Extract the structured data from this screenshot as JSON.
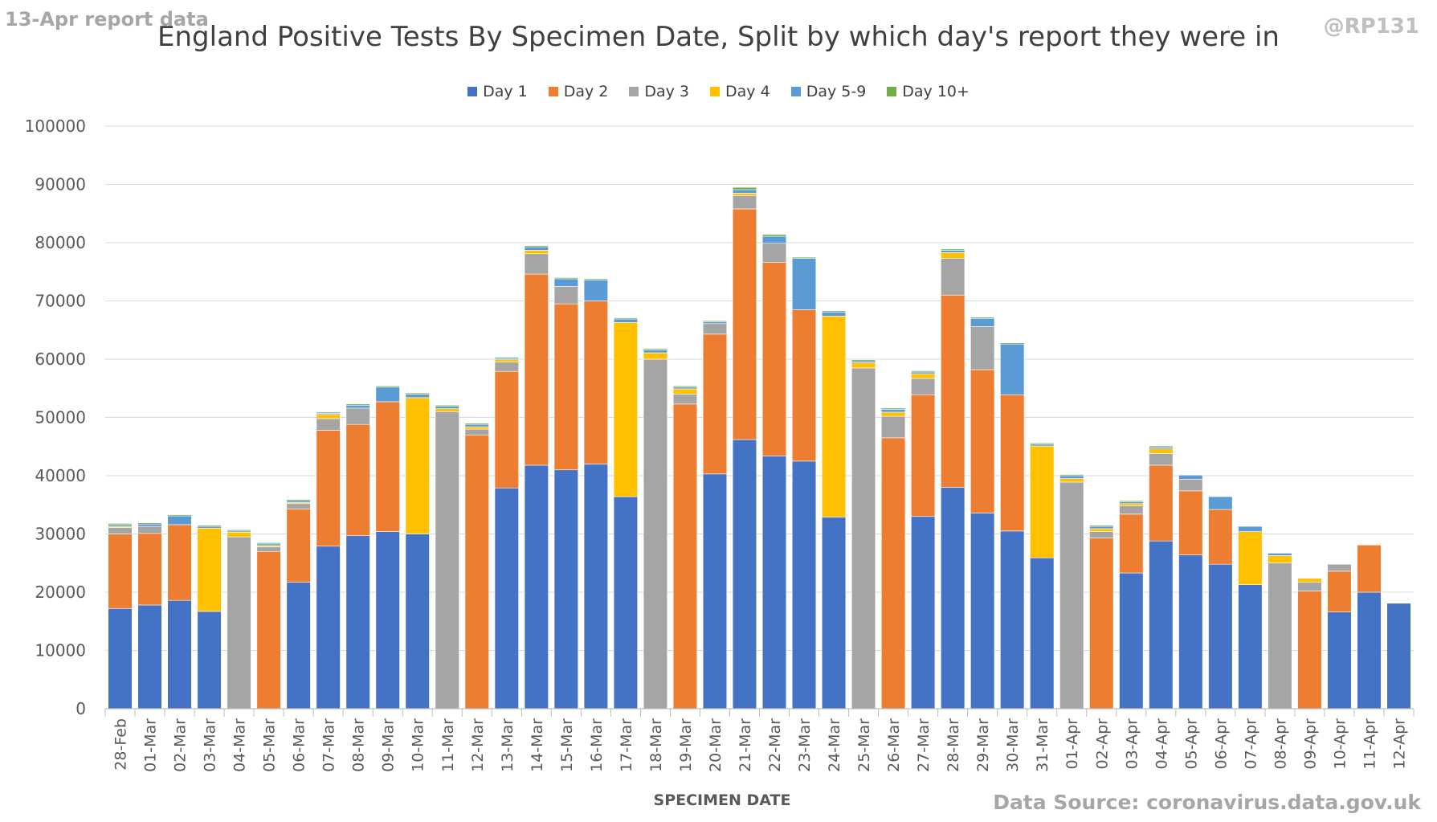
{
  "corner_label": "13-Apr report data",
  "watermark": "@RP131",
  "source": "Data Source: coronavirus.data.gov.uk",
  "colors": {
    "day1": "#4472c4",
    "day2": "#ed7d31",
    "day3": "#a5a5a5",
    "day4": "#ffc000",
    "day5_9": "#5b9bd5",
    "day10": "#70ad47",
    "grid": "#d9d9d9",
    "text": "#595959"
  },
  "chart_data": {
    "type": "bar",
    "stacked": true,
    "title": "England Positive Tests By Specimen Date, Split by which day's report they were in",
    "xlabel": "SPECIMEN DATE",
    "ylabel": "",
    "ylim": [
      0,
      100000
    ],
    "yticks": [
      0,
      10000,
      20000,
      30000,
      40000,
      50000,
      60000,
      70000,
      80000,
      90000,
      100000
    ],
    "grid": true,
    "legend_position": "top",
    "categories": [
      "28-Feb",
      "01-Mar",
      "02-Mar",
      "03-Mar",
      "04-Mar",
      "05-Mar",
      "06-Mar",
      "07-Mar",
      "08-Mar",
      "09-Mar",
      "10-Mar",
      "11-Mar",
      "12-Mar",
      "13-Mar",
      "14-Mar",
      "15-Mar",
      "16-Mar",
      "17-Mar",
      "18-Mar",
      "19-Mar",
      "20-Mar",
      "21-Mar",
      "22-Mar",
      "23-Mar",
      "24-Mar",
      "25-Mar",
      "26-Mar",
      "27-Mar",
      "28-Mar",
      "29-Mar",
      "30-Mar",
      "31-Mar",
      "01-Apr",
      "02-Apr",
      "03-Apr",
      "04-Apr",
      "05-Apr",
      "06-Apr",
      "07-Apr",
      "08-Apr",
      "09-Apr",
      "10-Apr",
      "11-Apr",
      "12-Apr"
    ],
    "series": [
      {
        "name": "Day 1",
        "values": [
          17200,
          17800,
          18600,
          16700,
          0,
          0,
          21700,
          27900,
          29700,
          30400,
          30000,
          0,
          0,
          37900,
          41800,
          41000,
          42000,
          36400,
          0,
          0,
          40300,
          46200,
          43400,
          42500,
          32900,
          0,
          0,
          33000,
          38000,
          33600,
          30500,
          25900,
          0,
          0,
          23300,
          28800,
          26400,
          24800,
          21300,
          0,
          0,
          16600,
          20000,
          18100
        ]
      },
      {
        "name": "Day 2",
        "values": [
          12800,
          12300,
          13000,
          0,
          0,
          27000,
          12600,
          19900,
          19100,
          22300,
          0,
          0,
          47000,
          20000,
          32800,
          28500,
          28000,
          0,
          0,
          52300,
          24000,
          39600,
          33200,
          26000,
          0,
          0,
          46500,
          20900,
          33000,
          24600,
          23400,
          0,
          0,
          29300,
          10100,
          13000,
          11000,
          9400,
          0,
          0,
          20200,
          7000,
          8100,
          0
        ]
      },
      {
        "name": "Day 3",
        "values": [
          1100,
          1200,
          0,
          0,
          29500,
          800,
          900,
          2000,
          2800,
          0,
          0,
          51000,
          1000,
          1600,
          3500,
          3000,
          0,
          0,
          60000,
          1700,
          1800,
          2300,
          3300,
          0,
          0,
          58500,
          3700,
          2800,
          6300,
          7400,
          0,
          0,
          38900,
          1100,
          1400,
          2000,
          2000,
          0,
          0,
          25000,
          1500,
          1200,
          0,
          0
        ]
      },
      {
        "name": "Day 4",
        "values": [
          200,
          0,
          0,
          14300,
          800,
          200,
          200,
          700,
          0,
          0,
          23400,
          500,
          400,
          400,
          600,
          0,
          0,
          29900,
          1100,
          900,
          0,
          400,
          0,
          0,
          34500,
          900,
          700,
          800,
          1000,
          0,
          0,
          19200,
          600,
          500,
          400,
          800,
          0,
          0,
          9100,
          1300,
          700,
          0,
          0,
          0
        ]
      },
      {
        "name": "Day 5-9",
        "values": [
          300,
          400,
          1500,
          300,
          200,
          300,
          300,
          200,
          500,
          2500,
          600,
          400,
          400,
          200,
          600,
          1300,
          3600,
          600,
          500,
          300,
          300,
          600,
          1200,
          8800,
          700,
          300,
          500,
          300,
          400,
          1400,
          8700,
          300,
          500,
          400,
          300,
          300,
          700,
          2200,
          900,
          400,
          0,
          0,
          0,
          0
        ]
      },
      {
        "name": "Day 10+",
        "values": [
          200,
          200,
          200,
          200,
          200,
          200,
          200,
          200,
          200,
          200,
          200,
          200,
          200,
          200,
          200,
          200,
          200,
          200,
          200,
          200,
          200,
          400,
          300,
          200,
          200,
          200,
          200,
          200,
          200,
          200,
          200,
          200,
          200,
          200,
          200,
          200,
          0,
          0,
          0,
          0,
          0,
          0,
          0,
          0
        ]
      }
    ]
  }
}
